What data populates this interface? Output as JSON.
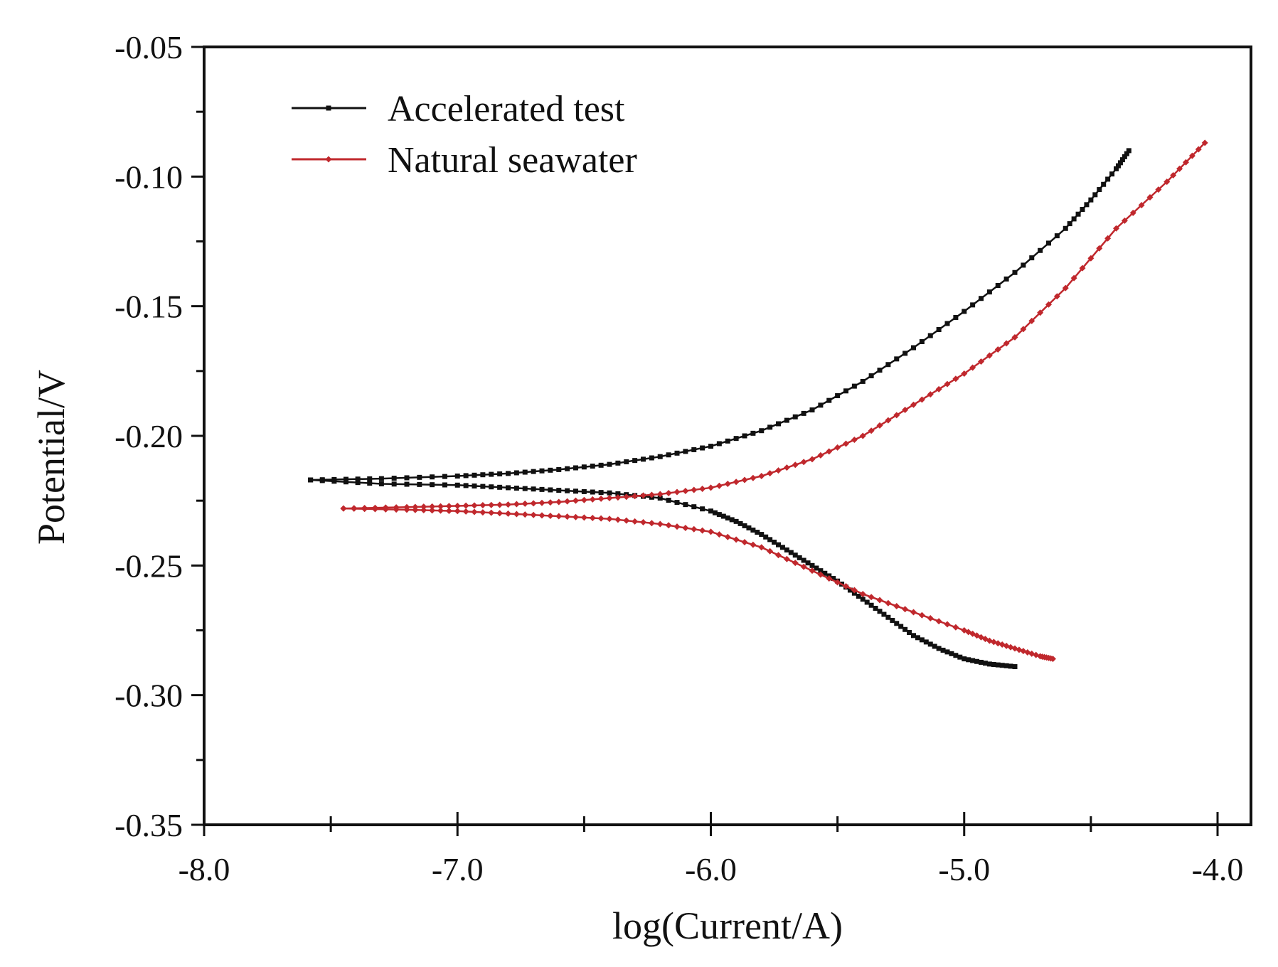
{
  "chart_data": {
    "type": "line",
    "title": "",
    "xlabel": "log(Current/A)",
    "ylabel": "Potential/V",
    "xlim": [
      -8.0,
      -4.0
    ],
    "ylim": [
      -0.35,
      -0.05
    ],
    "xticks": [
      -8.0,
      -7.0,
      -6.0,
      -5.0,
      -4.0
    ],
    "xtick_labels": [
      "-8.0",
      "-7.0",
      "-6.0",
      "-5.0",
      "-4.0"
    ],
    "yticks": [
      -0.05,
      -0.1,
      -0.15,
      -0.2,
      -0.25,
      -0.3,
      -0.35
    ],
    "ytick_labels": [
      "-0.05",
      "-0.10",
      "-0.15",
      "-0.20",
      "-0.25",
      "-0.30",
      "-0.35"
    ],
    "grid": false,
    "legend_position": "top-left",
    "series": [
      {
        "name": "Accelerated test",
        "color": "#111111",
        "marker": "square",
        "cathodic": {
          "x": [
            -7.58,
            -7.3,
            -7.0,
            -6.8,
            -6.6,
            -6.4,
            -6.2,
            -6.0,
            -5.9,
            -5.8,
            -5.7,
            -5.6,
            -5.5,
            -5.4,
            -5.3,
            -5.2,
            -5.1,
            -5.0,
            -4.9,
            -4.8
          ],
          "y": [
            -0.217,
            -0.2185,
            -0.219,
            -0.22,
            -0.221,
            -0.222,
            -0.224,
            -0.229,
            -0.233,
            -0.238,
            -0.244,
            -0.25,
            -0.256,
            -0.263,
            -0.27,
            -0.277,
            -0.282,
            -0.286,
            -0.288,
            -0.289
          ]
        },
        "anodic": {
          "x": [
            -7.58,
            -7.3,
            -7.0,
            -6.8,
            -6.6,
            -6.4,
            -6.2,
            -6.0,
            -5.8,
            -5.6,
            -5.4,
            -5.2,
            -5.0,
            -4.8,
            -4.6,
            -4.5,
            -4.4,
            -4.35
          ],
          "y": [
            -0.217,
            -0.2165,
            -0.2155,
            -0.2145,
            -0.213,
            -0.211,
            -0.208,
            -0.204,
            -0.198,
            -0.19,
            -0.179,
            -0.166,
            -0.152,
            -0.137,
            -0.12,
            -0.109,
            -0.097,
            -0.09
          ]
        }
      },
      {
        "name": "Natural seawater",
        "color": "#c0282d",
        "marker": "diamond",
        "cathodic": {
          "x": [
            -7.45,
            -7.2,
            -7.0,
            -6.8,
            -6.6,
            -6.4,
            -6.2,
            -6.0,
            -5.8,
            -5.6,
            -5.4,
            -5.2,
            -5.0,
            -4.9,
            -4.8,
            -4.7,
            -4.65
          ],
          "y": [
            -0.228,
            -0.2285,
            -0.229,
            -0.23,
            -0.231,
            -0.232,
            -0.234,
            -0.237,
            -0.243,
            -0.252,
            -0.261,
            -0.268,
            -0.275,
            -0.279,
            -0.282,
            -0.285,
            -0.286
          ]
        },
        "anodic": {
          "x": [
            -7.45,
            -7.2,
            -7.0,
            -6.8,
            -6.6,
            -6.4,
            -6.2,
            -6.0,
            -5.8,
            -5.6,
            -5.4,
            -5.2,
            -5.0,
            -4.8,
            -4.6,
            -4.4,
            -4.2,
            -4.05
          ],
          "y": [
            -0.228,
            -0.2275,
            -0.227,
            -0.2265,
            -0.2255,
            -0.224,
            -0.2225,
            -0.22,
            -0.2155,
            -0.209,
            -0.2,
            -0.188,
            -0.176,
            -0.162,
            -0.143,
            -0.12,
            -0.102,
            -0.087
          ]
        }
      }
    ]
  }
}
